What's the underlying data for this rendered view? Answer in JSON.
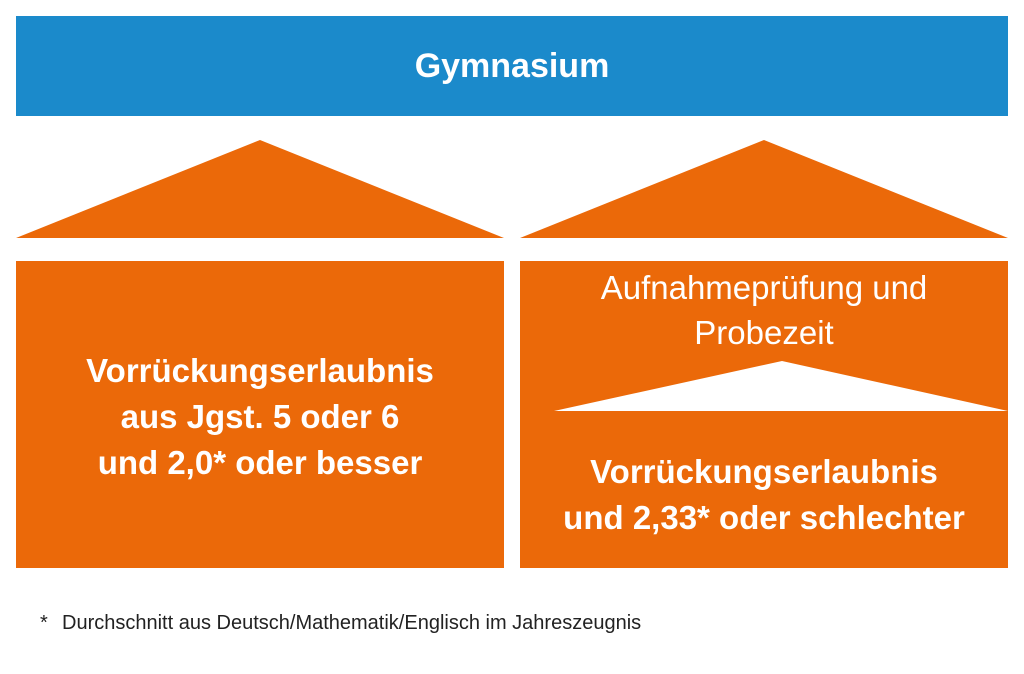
{
  "banner": {
    "title": "Gymnasium"
  },
  "left_path": {
    "lines": [
      "Vorrückungserlaubnis",
      "aus Jgst. 5 oder 6",
      "und 2,0* oder besser"
    ]
  },
  "right_path": {
    "upper_lines": [
      "Aufnahmeprüfung und",
      "Probezeit"
    ],
    "lower_lines": [
      "Vorrückungserlaubnis",
      "und 2,33* oder schlechter"
    ]
  },
  "footnote": {
    "marker": "*",
    "text": "Durchschnitt aus Deutsch/Mathematik/Englisch im Jahreszeugnis"
  },
  "colors": {
    "banner": "#1b8acb",
    "orange": "#eb6909",
    "text_on_color": "#ffffff"
  }
}
